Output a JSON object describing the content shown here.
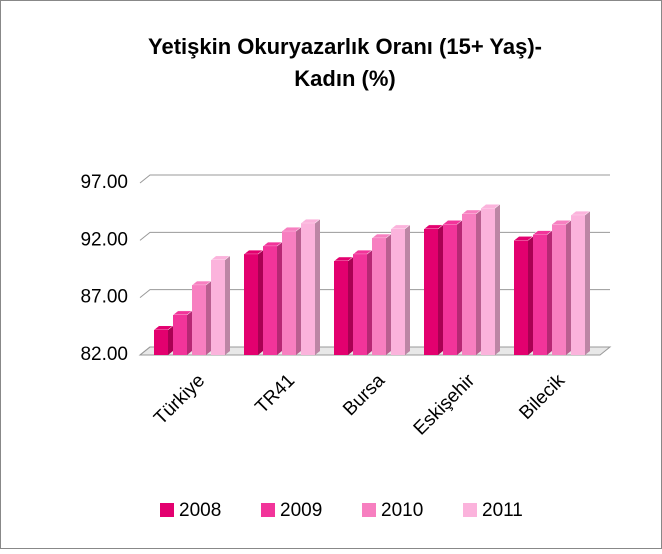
{
  "chart_data": {
    "type": "bar3d",
    "title": [
      "Yetişkin Okuryazarlık Oranı (15+ Yaş)-",
      "Kadın (%)"
    ],
    "categories": [
      "Türkiye",
      "TR41",
      "Bursa",
      "Eskişehir",
      "Bilecik"
    ],
    "series": [
      {
        "name": "2008",
        "color": "#e3006f",
        "values": [
          84.2,
          90.8,
          90.2,
          93.0,
          92.0
        ]
      },
      {
        "name": "2009",
        "color": "#f2349a",
        "values": [
          85.5,
          91.5,
          90.8,
          93.4,
          92.5
        ]
      },
      {
        "name": "2010",
        "color": "#f77fc0",
        "values": [
          88.1,
          92.8,
          92.2,
          94.3,
          93.4
        ]
      },
      {
        "name": "2011",
        "color": "#fbb3dc",
        "values": [
          90.3,
          93.5,
          93.0,
          94.8,
          94.2
        ]
      }
    ],
    "ylim": [
      82,
      97
    ],
    "yticks": [
      {
        "value": 82,
        "label": "82.00"
      },
      {
        "value": 87,
        "label": "87.00"
      },
      {
        "value": 92,
        "label": "92.00"
      },
      {
        "value": 97,
        "label": "97.00"
      }
    ],
    "grid": true,
    "legend": "bottom"
  }
}
